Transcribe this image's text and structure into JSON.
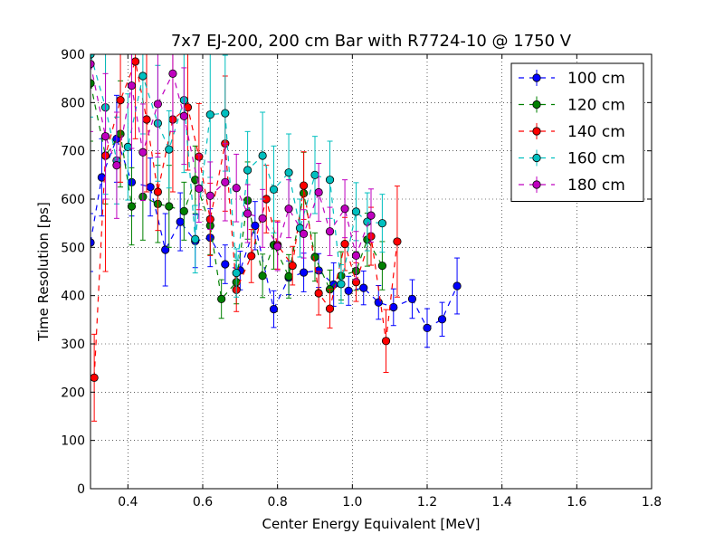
{
  "chart_data": {
    "type": "scatter",
    "title": "7x7 EJ-200, 200 cm Bar with R7724-10 @ 1750 V",
    "xlabel": "Center Energy Equivalent [MeV]",
    "ylabel": "Time Resolution [ps]",
    "xlim": [
      0.3,
      1.8
    ],
    "ylim": [
      0,
      900
    ],
    "xticks": [
      "0.4",
      "0.6",
      "0.8",
      "1.0",
      "1.2",
      "1.4",
      "1.6",
      "1.8"
    ],
    "yticks": [
      "0",
      "100",
      "200",
      "300",
      "400",
      "500",
      "600",
      "700",
      "800",
      "900"
    ],
    "grid": true,
    "legend_position": "top-right",
    "series": [
      {
        "name": "100 cm",
        "color": "#0000ff",
        "x": [
          0.3,
          0.33,
          0.37,
          0.41,
          0.46,
          0.5,
          0.54,
          0.58,
          0.62,
          0.66,
          0.7,
          0.74,
          0.79,
          0.83,
          0.87,
          0.91,
          0.95,
          0.99,
          1.03,
          1.07,
          1.11,
          1.16,
          1.2,
          1.24,
          1.28
        ],
        "y": [
          510,
          645,
          725,
          635,
          625,
          495,
          553,
          513,
          520,
          465,
          452,
          545,
          372,
          437,
          448,
          452,
          423,
          410,
          416,
          386,
          376,
          393,
          333,
          351,
          420
        ],
        "err": [
          60,
          80,
          90,
          70,
          60,
          75,
          60,
          55,
          60,
          40,
          40,
          50,
          38,
          35,
          40,
          35,
          45,
          30,
          35,
          35,
          38,
          40,
          40,
          35,
          58
        ]
      },
      {
        "name": "120 cm",
        "color": "#008000",
        "x": [
          0.3,
          0.34,
          0.38,
          0.41,
          0.44,
          0.48,
          0.51,
          0.55,
          0.58,
          0.62,
          0.65,
          0.69,
          0.72,
          0.76,
          0.79,
          0.83,
          0.87,
          0.9,
          0.94,
          0.97,
          1.01,
          1.04,
          1.08
        ],
        "y": [
          840,
          690,
          735,
          585,
          605,
          590,
          585,
          575,
          640,
          545,
          393,
          428,
          597,
          441,
          505,
          440,
          612,
          480,
          413,
          441,
          451,
          516,
          462
        ],
        "err": [
          120,
          100,
          110,
          80,
          90,
          80,
          85,
          60,
          70,
          60,
          40,
          45,
          80,
          45,
          50,
          45,
          85,
          50,
          40,
          50,
          40,
          55,
          50
        ]
      },
      {
        "name": "140 cm",
        "color": "#ff0000",
        "x": [
          0.31,
          0.34,
          0.38,
          0.42,
          0.45,
          0.48,
          0.52,
          0.56,
          0.59,
          0.62,
          0.66,
          0.69,
          0.73,
          0.77,
          0.8,
          0.84,
          0.87,
          0.91,
          0.94,
          0.98,
          1.01,
          1.05,
          1.09,
          1.12
        ],
        "y": [
          230,
          690,
          805,
          885,
          765,
          615,
          765,
          790,
          688,
          558,
          715,
          412,
          482,
          600,
          505,
          462,
          628,
          405,
          373,
          507,
          428,
          523,
          306,
          512
        ],
        "err": [
          90,
          240,
          170,
          160,
          150,
          80,
          150,
          130,
          110,
          75,
          140,
          45,
          55,
          70,
          50,
          40,
          70,
          45,
          40,
          55,
          40,
          60,
          65,
          115
        ]
      },
      {
        "name": "160 cm",
        "color": "#00bfbf",
        "x": [
          0.3,
          0.34,
          0.37,
          0.4,
          0.44,
          0.48,
          0.51,
          0.55,
          0.58,
          0.62,
          0.66,
          0.69,
          0.72,
          0.76,
          0.79,
          0.83,
          0.86,
          0.9,
          0.94,
          0.97,
          1.01,
          1.04,
          1.08
        ],
        "y": [
          900,
          790,
          680,
          708,
          855,
          757,
          703,
          805,
          517,
          775,
          778,
          447,
          660,
          690,
          620,
          655,
          540,
          650,
          640,
          424,
          574,
          553,
          550
        ],
        "err": [
          130,
          180,
          90,
          110,
          120,
          120,
          80,
          150,
          70,
          130,
          120,
          50,
          80,
          90,
          90,
          80,
          60,
          80,
          80,
          40,
          60,
          60,
          60
        ]
      },
      {
        "name": "180 cm",
        "color": "#bf00bf",
        "x": [
          0.3,
          0.34,
          0.37,
          0.41,
          0.44,
          0.48,
          0.52,
          0.55,
          0.59,
          0.62,
          0.66,
          0.69,
          0.72,
          0.76,
          0.8,
          0.83,
          0.87,
          0.91,
          0.94,
          0.98,
          1.01,
          1.05
        ],
        "y": [
          880,
          730,
          670,
          835,
          697,
          797,
          860,
          772,
          622,
          607,
          635,
          623,
          570,
          560,
          502,
          580,
          528,
          614,
          533,
          580,
          483,
          566
        ],
        "err": [
          140,
          130,
          110,
          130,
          100,
          110,
          120,
          100,
          70,
          70,
          80,
          70,
          60,
          60,
          50,
          60,
          50,
          60,
          50,
          60,
          50,
          55
        ]
      }
    ]
  }
}
